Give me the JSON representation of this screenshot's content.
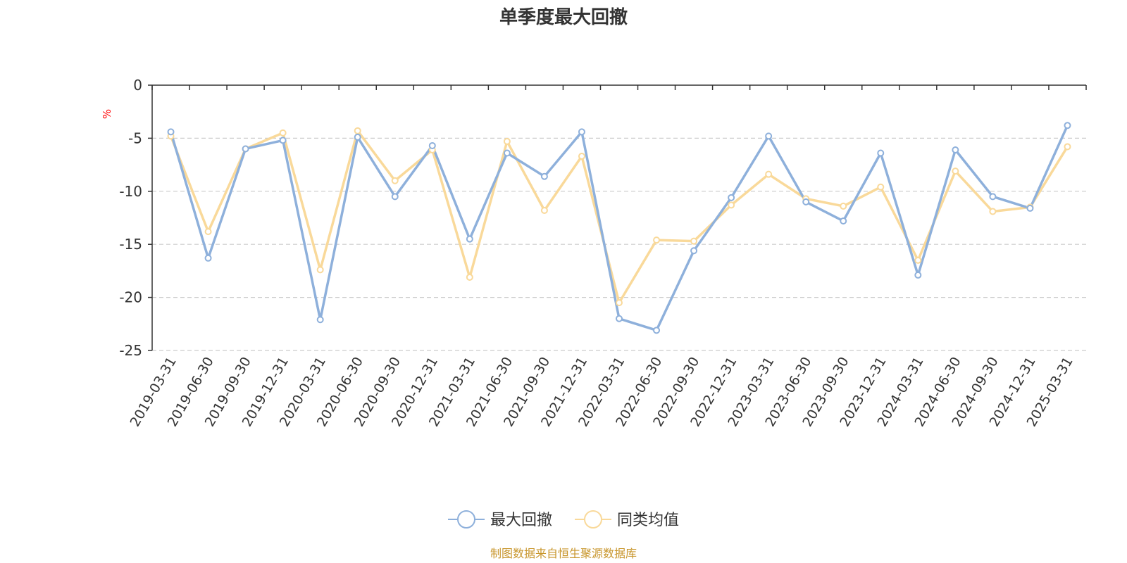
{
  "chart_data": {
    "type": "line",
    "title": "单季度最大回撤",
    "unit": "%",
    "source": "制图数据来自恒生聚源数据库",
    "categories": [
      "2019-03-31",
      "2019-06-30",
      "2019-09-30",
      "2019-12-31",
      "2020-03-31",
      "2020-06-30",
      "2020-09-30",
      "2020-12-31",
      "2021-03-31",
      "2021-06-30",
      "2021-09-30",
      "2021-12-31",
      "2022-03-31",
      "2022-06-30",
      "2022-09-30",
      "2022-12-31",
      "2023-03-31",
      "2023-06-30",
      "2023-09-30",
      "2023-12-31",
      "2024-03-31",
      "2024-06-30",
      "2024-09-30",
      "2024-12-31",
      "2025-03-31"
    ],
    "ylim": [
      -25,
      0
    ],
    "yticks": [
      0,
      -5,
      -10,
      -15,
      -20,
      -25
    ],
    "y_tick_labels": [
      "0",
      "-5",
      "-10",
      "-15",
      "-20",
      "-25"
    ],
    "grid": true,
    "legend_position": "bottom",
    "series": [
      {
        "name": "最大回撤",
        "color": "#8eb0db",
        "values": [
          -4.4,
          -16.3,
          -6.0,
          -5.2,
          -22.1,
          -4.9,
          -10.5,
          -5.7,
          -14.5,
          -6.4,
          -8.6,
          -4.4,
          -22.0,
          -23.1,
          -15.6,
          -10.6,
          -4.8,
          -11.0,
          -12.8,
          -6.4,
          -17.9,
          -6.1,
          -10.5,
          -11.6,
          -3.8
        ]
      },
      {
        "name": "同类均值",
        "color": "#f9d99a",
        "values": [
          -4.8,
          -13.8,
          -6.0,
          -4.5,
          -17.4,
          -4.3,
          -9.0,
          -6.1,
          -18.1,
          -5.3,
          -11.8,
          -6.7,
          -20.5,
          -14.6,
          -14.7,
          -11.3,
          -8.4,
          -10.7,
          -11.4,
          -9.6,
          -16.5,
          -8.1,
          -11.9,
          -11.5,
          -5.8
        ]
      }
    ]
  }
}
